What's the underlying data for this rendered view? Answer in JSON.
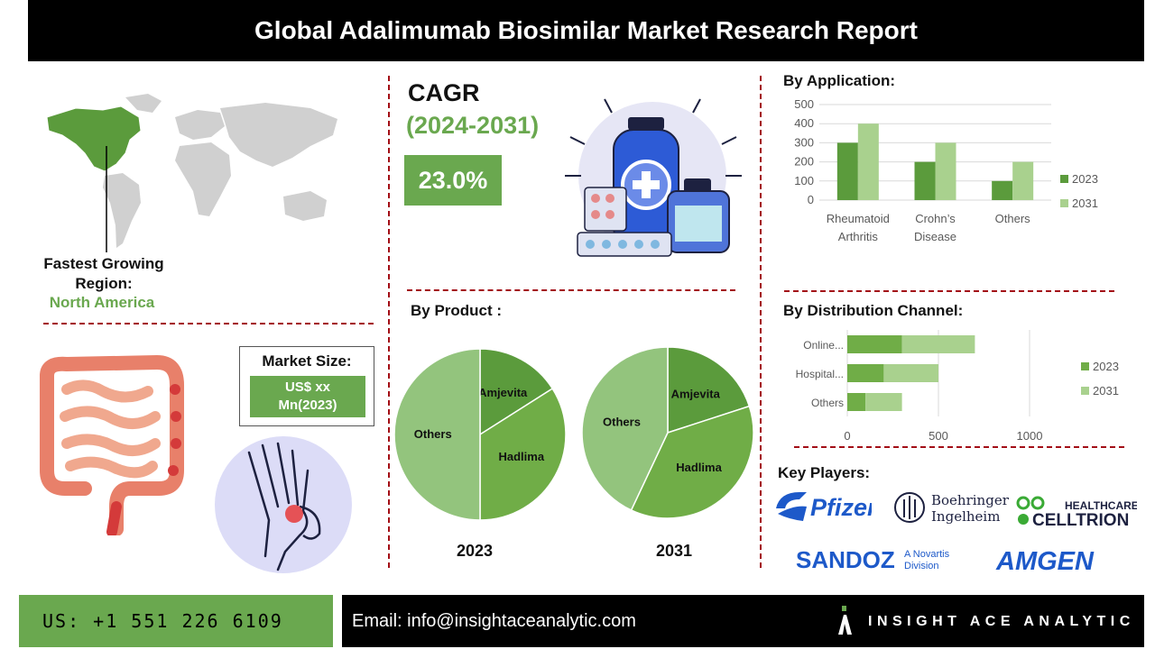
{
  "title": "Global Adalimumab Biosimilar Market Research Report",
  "cagr": {
    "label": "CAGR",
    "period": "(2024-2031)",
    "value": "23.0%"
  },
  "region": {
    "label": "Fastest Growing Region:",
    "value": "North America"
  },
  "market_size": {
    "label": "Market Size:",
    "value_line1": "US$ xx",
    "value_line2": "Mn(2023)"
  },
  "by_application": {
    "heading": "By Application:"
  },
  "by_product": {
    "heading": "By Product :"
  },
  "by_distribution": {
    "heading": "By Distribution Channel:"
  },
  "key_players": {
    "heading": "Key Players:",
    "logos": [
      "Pfizer",
      "Boehringer Ingelheim",
      "HEALTHCARE CELLTRION",
      "SANDOZ A Novartis Division",
      "AMGEN"
    ]
  },
  "footer": {
    "phone": "US: +1 551 226 6109",
    "email": "Email: info@insightaceanalytic.com",
    "brand": "INSIGHT ACE ANALYTIC"
  },
  "colors": {
    "dark_green": "#5b9b3c",
    "mid_green": "#70ad47",
    "light_green": "#a9d18e",
    "pie_light": "#93c47d",
    "accent_red": "#a30d16"
  },
  "chart_data": [
    {
      "type": "bar",
      "categories": [
        "Rheumatoid Arthritis",
        "Crohn’s Disease",
        "Others"
      ],
      "category_lines": [
        [
          "Rheumatoid",
          "Arthritis"
        ],
        [
          "Crohn’s",
          "Disease"
        ],
        [
          "Others"
        ]
      ],
      "series": [
        {
          "name": "2023",
          "values": [
            300,
            200,
            100
          ]
        },
        {
          "name": "2031",
          "values": [
            400,
            300,
            200
          ]
        }
      ],
      "ylim": [
        0,
        500
      ],
      "yticks": [
        0,
        100,
        200,
        300,
        400,
        500
      ],
      "grid": true,
      "legend": "right"
    },
    {
      "type": "bar",
      "orientation": "horizontal",
      "stacked": true,
      "categories": [
        "Online...",
        "Hospital...",
        "Others"
      ],
      "series": [
        {
          "name": "2023",
          "values": [
            300,
            200,
            100
          ]
        },
        {
          "name": "2031",
          "values": [
            400,
            300,
            200
          ]
        }
      ],
      "xlim": [
        0,
        1000
      ],
      "xticks": [
        0,
        500,
        1000
      ],
      "grid": true,
      "legend": "right"
    },
    {
      "type": "pie",
      "label": "2023",
      "slices": [
        {
          "name": "Amjevita",
          "value": 16
        },
        {
          "name": "Hadlima",
          "value": 34
        },
        {
          "name": "Others",
          "value": 50
        }
      ]
    },
    {
      "type": "pie",
      "label": "2031",
      "slices": [
        {
          "name": "Amjevita",
          "value": 20
        },
        {
          "name": "Hadlima",
          "value": 37
        },
        {
          "name": "Others",
          "value": 43
        }
      ]
    }
  ]
}
